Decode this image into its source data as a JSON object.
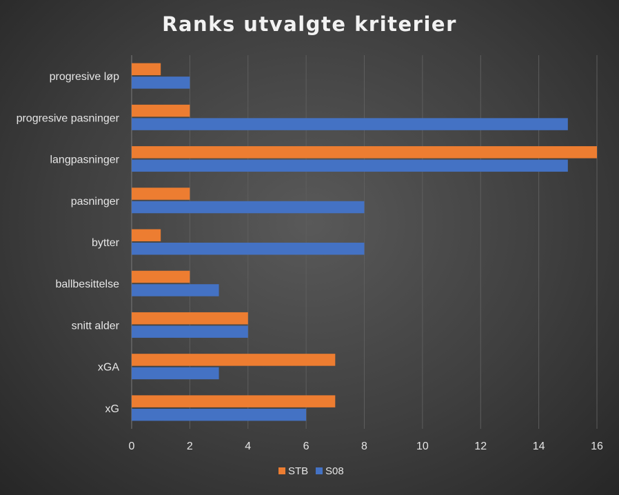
{
  "chart_data": {
    "type": "bar",
    "orientation": "horizontal",
    "title": "Ranks utvalgte kriterier",
    "categories": [
      "progresive løp",
      "progresive pasninger",
      "langpasninger",
      "pasninger",
      "bytter",
      "ballbesittelse",
      "snitt alder",
      "xGA",
      "xG"
    ],
    "series": [
      {
        "name": "STB",
        "color": "#ed7d31",
        "values": [
          1,
          2,
          16,
          2,
          1,
          2,
          4,
          7,
          7
        ]
      },
      {
        "name": "S08",
        "color": "#4472c4",
        "values": [
          2,
          15,
          15,
          8,
          8,
          3,
          4,
          3,
          6
        ]
      }
    ],
    "xlim": [
      0,
      16
    ],
    "xticks": [
      "0",
      "2",
      "4",
      "6",
      "8",
      "10",
      "12",
      "14",
      "16"
    ],
    "grid": true,
    "legend": "bottom"
  }
}
